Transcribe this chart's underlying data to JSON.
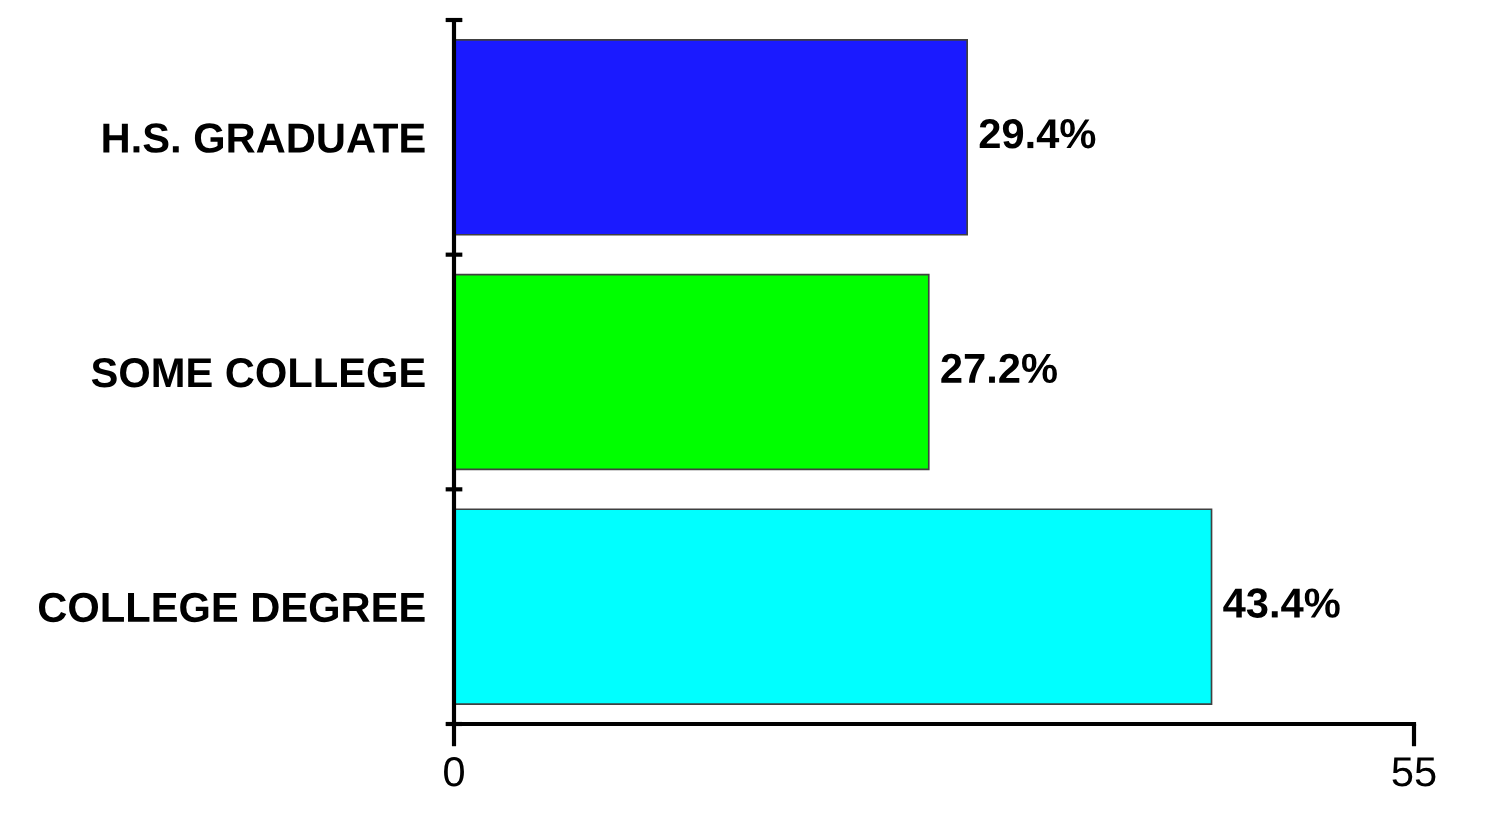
{
  "chart_data": {
    "type": "bar",
    "orientation": "horizontal",
    "categories": [
      "H.S. GRADUATE",
      "SOME COLLEGE",
      "COLLEGE DEGREE"
    ],
    "values": [
      29.4,
      27.2,
      43.4
    ],
    "colors": [
      "#1a1aff",
      "#00ff00",
      "#00ffff"
    ],
    "value_labels": [
      "29.4%",
      "27.2%",
      "43.4%"
    ],
    "xlim": [
      0,
      55
    ],
    "xticks": [
      0,
      55
    ],
    "grid": false
  }
}
